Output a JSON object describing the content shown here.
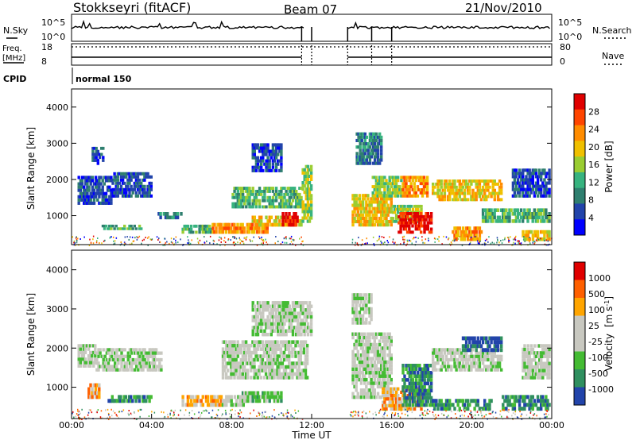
{
  "header": {
    "station": "Stokkseyri (fitACF)",
    "beam": "Beam 07",
    "date": "21/Nov/2010"
  },
  "strip": {
    "nsky_label": "N.Sky",
    "nsky_ticks": [
      "10^5",
      "10^0"
    ],
    "nsearch_label": "N.Search",
    "nsearch_ticks": [
      "10^5",
      "10^0"
    ],
    "freq_label_1": "Freq.",
    "freq_label_2": "[MHz]",
    "freq_ticks": [
      "18",
      "8"
    ],
    "nave_label": "Nave",
    "nave_ticks": [
      "80",
      "0"
    ],
    "cpid_label": "CPID",
    "cpid_value": "normal 150"
  },
  "chart_data": [
    {
      "type": "heatmap",
      "name": "power-panel",
      "ylabel": "Slant Range [km]",
      "yticks": [
        "4000",
        "3000",
        "2000",
        "1000"
      ],
      "ylim": [
        200,
        4500
      ],
      "xlim": [
        0,
        24
      ],
      "colorbar_label": "Power [dB]",
      "colorbar_ticks": [
        "28",
        "24",
        "20",
        "16",
        "12",
        "8",
        "4"
      ],
      "colorbar_colors": [
        "#0000ff",
        "#2244aa",
        "#2f7f6f",
        "#37b37f",
        "#9acd32",
        "#f0c000",
        "#ff8c00",
        "#ff4500",
        "#e00000"
      ],
      "blobs": [
        {
          "t0": 0.3,
          "t1": 2.0,
          "r0": 1300,
          "r1": 2100,
          "level": 1
        },
        {
          "t0": 1.0,
          "t1": 1.6,
          "r0": 2400,
          "r1": 2900,
          "level": 1
        },
        {
          "t0": 2.0,
          "t1": 4.0,
          "r0": 1500,
          "r1": 2200,
          "level": 1
        },
        {
          "t0": 1.5,
          "t1": 3.5,
          "r0": 600,
          "r1": 750,
          "level": 3
        },
        {
          "t0": 4.3,
          "t1": 5.5,
          "r0": 900,
          "r1": 1100,
          "level": 2
        },
        {
          "t0": 5.5,
          "t1": 7.0,
          "r0": 500,
          "r1": 750,
          "level": 3
        },
        {
          "t0": 7.0,
          "t1": 9.8,
          "r0": 500,
          "r1": 800,
          "level": 6
        },
        {
          "t0": 9.0,
          "t1": 11.5,
          "r0": 700,
          "r1": 1000,
          "level": 5
        },
        {
          "t0": 10.5,
          "t1": 11.3,
          "r0": 700,
          "r1": 1100,
          "level": 8
        },
        {
          "t0": 8.0,
          "t1": 11.5,
          "r0": 1200,
          "r1": 1800,
          "level": 3
        },
        {
          "t0": 9.0,
          "t1": 10.5,
          "r0": 2200,
          "r1": 3000,
          "level": 1
        },
        {
          "t0": 11.5,
          "t1": 12.0,
          "r0": 800,
          "r1": 2400,
          "level": 4
        },
        {
          "t0": 14.0,
          "t1": 16.0,
          "r0": 700,
          "r1": 1600,
          "level": 5
        },
        {
          "t0": 15.0,
          "t1": 16.5,
          "r0": 1500,
          "r1": 2100,
          "level": 4
        },
        {
          "t0": 16.5,
          "t1": 17.8,
          "r0": 1500,
          "r1": 2100,
          "level": 6
        },
        {
          "t0": 16.0,
          "t1": 17.5,
          "r0": 800,
          "r1": 1300,
          "level": 4
        },
        {
          "t0": 16.3,
          "t1": 18.0,
          "r0": 500,
          "r1": 1100,
          "level": 8
        },
        {
          "t0": 14.2,
          "t1": 15.5,
          "r0": 2400,
          "r1": 3300,
          "level": 2
        },
        {
          "t0": 18.0,
          "t1": 21.5,
          "r0": 1400,
          "r1": 2000,
          "level": 5
        },
        {
          "t0": 19.0,
          "t1": 20.5,
          "r0": 300,
          "r1": 700,
          "level": 6
        },
        {
          "t0": 20.5,
          "t1": 23.9,
          "r0": 800,
          "r1": 1200,
          "level": 3
        },
        {
          "t0": 22.5,
          "t1": 23.9,
          "r0": 300,
          "r1": 600,
          "level": 5
        },
        {
          "t0": 22.0,
          "t1": 23.9,
          "r0": 1500,
          "r1": 2300,
          "level": 1
        }
      ]
    },
    {
      "type": "heatmap",
      "name": "velocity-panel",
      "ylabel": "Slant Range [km]",
      "yticks": [
        "4000",
        "3000",
        "2000",
        "1000"
      ],
      "ylim": [
        200,
        4500
      ],
      "xlim": [
        0,
        24
      ],
      "xticks": [
        "00:00",
        "04:00",
        "08:00",
        "12:00",
        "16:00",
        "20:00",
        "00:00"
      ],
      "xlabel": "Time UT",
      "colorbar_label_main": "Velocity",
      "colorbar_label_unit_pre": "[m s",
      "colorbar_label_sup": "-1",
      "colorbar_label_unit_post": "]",
      "colorbar_ticks": [
        "1000",
        "500",
        "100",
        "25",
        "-25",
        "-100",
        "-500",
        "-1000"
      ],
      "colorbar_colors": [
        "#2244aa",
        "#2f8f5f",
        "#44bb33",
        "#c8c8c0",
        "#c8c8c0",
        "#ffa500",
        "#ff6000",
        "#e00000"
      ],
      "blobs": [
        {
          "t0": 0.3,
          "t1": 1.2,
          "r0": 1500,
          "r1": 2100,
          "level": 3
        },
        {
          "t0": 1.2,
          "t1": 4.5,
          "r0": 1400,
          "r1": 2000,
          "level": 3
        },
        {
          "t0": 1.8,
          "t1": 4.0,
          "r0": 600,
          "r1": 800,
          "level": 1
        },
        {
          "t0": 0.8,
          "t1": 1.4,
          "r0": 700,
          "r1": 1100,
          "level": 5
        },
        {
          "t0": 5.5,
          "t1": 7.5,
          "r0": 500,
          "r1": 800,
          "level": 5
        },
        {
          "t0": 7.5,
          "t1": 8.7,
          "r0": 500,
          "r1": 800,
          "level": 3
        },
        {
          "t0": 8.5,
          "t1": 10.5,
          "r0": 600,
          "r1": 900,
          "level": 2
        },
        {
          "t0": 7.5,
          "t1": 11.8,
          "r0": 1200,
          "r1": 2200,
          "level": 3
        },
        {
          "t0": 9.0,
          "t1": 12.0,
          "r0": 2300,
          "r1": 3200,
          "level": 3
        },
        {
          "t0": 14.0,
          "t1": 16.0,
          "r0": 700,
          "r1": 2400,
          "level": 3
        },
        {
          "t0": 15.5,
          "t1": 17.5,
          "r0": 400,
          "r1": 1000,
          "level": 5
        },
        {
          "t0": 16.5,
          "t1": 18.0,
          "r0": 500,
          "r1": 1600,
          "level": 1
        },
        {
          "t0": 14.0,
          "t1": 15.0,
          "r0": 2600,
          "r1": 3400,
          "level": 3
        },
        {
          "t0": 18.0,
          "t1": 21.5,
          "r0": 1400,
          "r1": 2000,
          "level": 3
        },
        {
          "t0": 18.0,
          "t1": 21.0,
          "r0": 400,
          "r1": 700,
          "level": 1
        },
        {
          "t0": 21.5,
          "t1": 23.9,
          "r0": 400,
          "r1": 800,
          "level": 1
        },
        {
          "t0": 19.5,
          "t1": 21.5,
          "r0": 1900,
          "r1": 2300,
          "level": 0
        },
        {
          "t0": 22.5,
          "t1": 23.9,
          "r0": 1200,
          "r1": 2100,
          "level": 3
        }
      ]
    }
  ]
}
